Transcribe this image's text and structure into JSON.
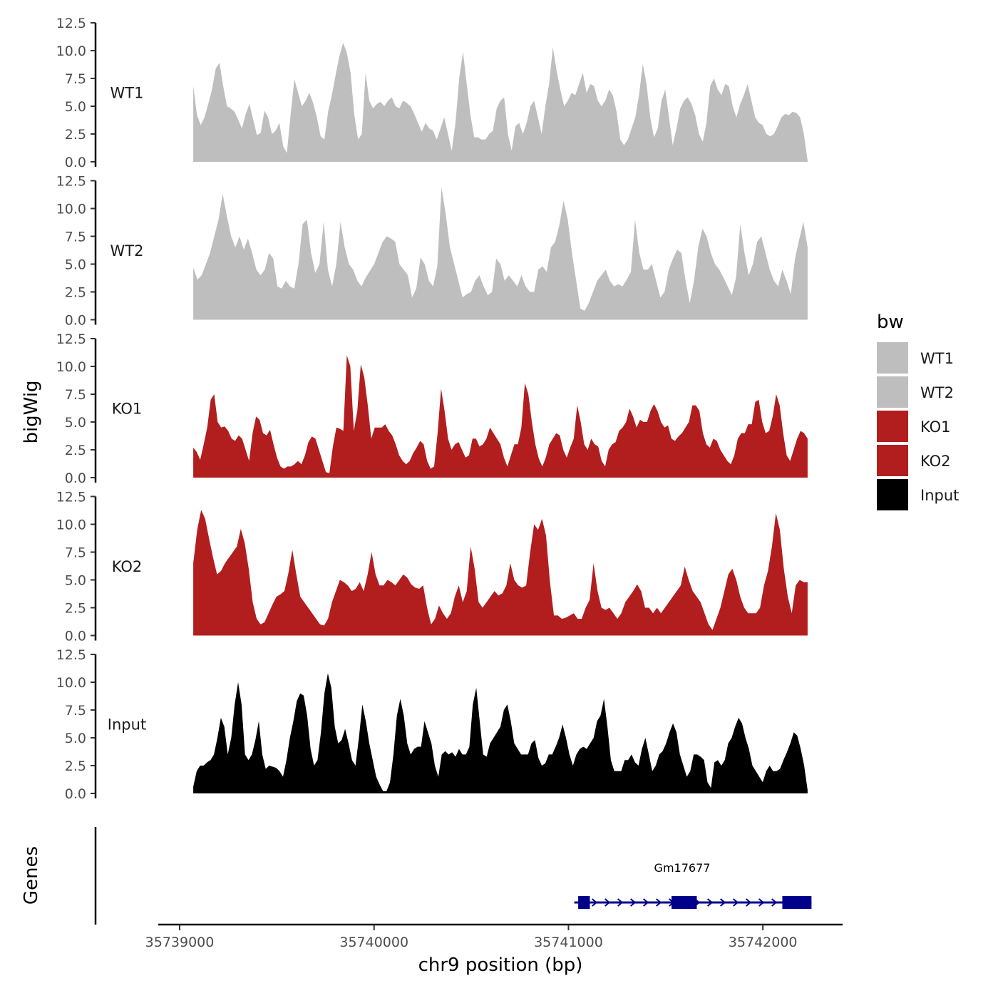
{
  "chart_data": {
    "type": "area",
    "ylabel": "bigWig",
    "xlabel": "chr9 position (bp)",
    "ylim": [
      0,
      12.5
    ],
    "yticks": [
      "0.0",
      "2.5",
      "5.0",
      "7.5",
      "10.0",
      "12.5"
    ],
    "xlim": [
      35738890,
      35742410
    ],
    "xticks": [
      35739000,
      35740000,
      35741000,
      35742000
    ],
    "xtick_labels": [
      "35739000",
      "35740000",
      "35741000",
      "35742000"
    ],
    "data_range": [
      35739070,
      35742230
    ],
    "legend": {
      "title": "bw",
      "placement": "right",
      "entries": [
        {
          "label": "WT1",
          "color": "#bebebe"
        },
        {
          "label": "WT2",
          "color": "#bebebe"
        },
        {
          "label": "KO1",
          "color": "#b21e1e"
        },
        {
          "label": "KO2",
          "color": "#b21e1e"
        },
        {
          "label": "Input",
          "color": "#000000"
        }
      ]
    },
    "series": [
      {
        "name": "WT1",
        "color": "#bebebe",
        "values": [
          6.8,
          4.2,
          3.3,
          4.0,
          5.2,
          6.5,
          8.4,
          8.9,
          6.8,
          5.0,
          4.8,
          4.5,
          3.8,
          3.0,
          4.3,
          5.2,
          3.8,
          2.4,
          2.6,
          4.6,
          4.0,
          2.5,
          2.8,
          3.5,
          1.4,
          0.8,
          4.3,
          7.4,
          6.2,
          5.0,
          5.5,
          6.2,
          5.3,
          4.0,
          2.3,
          2.0,
          4.5,
          6.0,
          7.8,
          9.5,
          10.7,
          9.8,
          8.0,
          4.2,
          2.0,
          2.5,
          8.0,
          5.5,
          4.8,
          5.2,
          5.4,
          5.0,
          5.5,
          5.8,
          5.0,
          4.8,
          5.5,
          5.3,
          5.0,
          4.3,
          3.5,
          2.7,
          3.5,
          3.0,
          2.8,
          2.0,
          3.0,
          4.0,
          2.5,
          1.0,
          3.5,
          7.5,
          9.9,
          7.0,
          4.2,
          2.2,
          2.2,
          2.0,
          2.0,
          2.5,
          2.8,
          4.8,
          5.5,
          5.8,
          2.5,
          1.0,
          3.2,
          3.5,
          2.5,
          3.5,
          5.0,
          5.5,
          4.0,
          2.5,
          5.0,
          7.0,
          10.3,
          8.2,
          6.5,
          5.0,
          5.5,
          6.2,
          6.0,
          7.0,
          8.0,
          6.2,
          7.0,
          6.8,
          5.5,
          5.0,
          5.5,
          6.5,
          6.0,
          4.5,
          2.0,
          1.5,
          2.0,
          3.0,
          4.0,
          6.0,
          8.8,
          7.0,
          4.0,
          2.2,
          3.0,
          5.5,
          6.5,
          4.0,
          1.5,
          3.0,
          4.8,
          5.5,
          5.8,
          5.2,
          4.2,
          2.5,
          1.8,
          3.5,
          6.8,
          7.5,
          6.5,
          6.0,
          7.0,
          6.8,
          5.0,
          4.0,
          5.2,
          6.0,
          7.0,
          5.5,
          4.0,
          3.5,
          3.3,
          2.5,
          2.3,
          2.5,
          3.2,
          4.0,
          4.3,
          4.2,
          4.5,
          4.4,
          4.0,
          2.5,
          0.1
        ]
      },
      {
        "name": "WT2",
        "color": "#bebebe",
        "values": [
          4.7,
          3.6,
          4.0,
          5.0,
          6.0,
          7.5,
          9.0,
          11.3,
          9.3,
          7.5,
          6.5,
          7.5,
          6.3,
          7.3,
          6.0,
          4.5,
          4.0,
          4.5,
          6.0,
          5.5,
          3.0,
          2.8,
          3.5,
          3.0,
          2.8,
          5.0,
          8.6,
          9.0,
          6.0,
          4.2,
          5.0,
          8.8,
          4.5,
          3.0,
          5.0,
          8.8,
          6.5,
          5.0,
          4.5,
          3.5,
          3.0,
          3.8,
          4.4,
          5.0,
          6.0,
          7.0,
          7.5,
          7.3,
          7.0,
          5.0,
          4.5,
          4.0,
          2.0,
          2.8,
          5.6,
          5.0,
          3.5,
          3.0,
          4.8,
          11.9,
          9.5,
          6.5,
          5.0,
          3.5,
          2.0,
          2.3,
          2.5,
          3.5,
          4.0,
          3.0,
          2.2,
          2.5,
          5.5,
          5.0,
          3.5,
          4.0,
          3.5,
          3.0,
          4.0,
          3.0,
          2.5,
          2.5,
          4.5,
          4.8,
          4.3,
          6.5,
          7.0,
          8.5,
          10.7,
          9.0,
          6.0,
          3.5,
          1.0,
          0.8,
          1.5,
          2.5,
          3.5,
          4.0,
          4.5,
          3.5,
          3.0,
          3.2,
          3.0,
          3.6,
          4.3,
          9.0,
          6.0,
          4.5,
          4.5,
          5.0,
          3.5,
          2.0,
          2.5,
          4.5,
          5.5,
          6.3,
          6.0,
          3.5,
          1.5,
          3.5,
          6.5,
          8.2,
          7.5,
          6.0,
          5.0,
          4.5,
          3.8,
          3.0,
          2.2,
          3.8,
          8.6,
          6.0,
          4.0,
          5.0,
          7.0,
          7.5,
          6.0,
          4.5,
          3.5,
          3.0,
          4.5,
          3.5,
          2.3,
          5.5,
          7.2,
          8.8,
          6.5
        ]
      },
      {
        "name": "KO1",
        "color": "#b21e1e",
        "values": [
          2.7,
          2.3,
          1.6,
          3.0,
          4.5,
          7.0,
          7.5,
          5.0,
          4.5,
          4.6,
          4.2,
          3.5,
          3.3,
          3.8,
          3.5,
          2.5,
          1.5,
          4.0,
          5.5,
          5.2,
          4.0,
          3.8,
          4.3,
          3.0,
          1.8,
          1.0,
          0.8,
          1.0,
          1.0,
          1.2,
          1.5,
          1.2,
          2.0,
          3.2,
          3.7,
          3.5,
          2.5,
          1.5,
          0.5,
          0.4,
          2.8,
          4.5,
          4.4,
          4.2,
          11.0,
          10.0,
          4.2,
          6.0,
          10.2,
          9.0,
          6.5,
          3.5,
          4.5,
          4.5,
          4.5,
          4.8,
          4.2,
          3.8,
          3.0,
          2.0,
          1.5,
          1.2,
          1.5,
          2.2,
          2.7,
          3.3,
          3.0,
          1.5,
          0.8,
          1.0,
          4.0,
          8.0,
          6.0,
          3.5,
          2.5,
          3.0,
          3.2,
          2.5,
          1.8,
          2.0,
          3.5,
          3.5,
          2.8,
          3.0,
          3.5,
          4.5,
          4.0,
          3.5,
          3.0,
          1.8,
          1.0,
          2.0,
          3.0,
          3.0,
          4.5,
          8.5,
          7.5,
          5.0,
          3.0,
          1.7,
          1.0,
          1.8,
          3.0,
          3.5,
          4.0,
          3.8,
          2.5,
          1.8,
          2.7,
          3.5,
          6.5,
          5.0,
          3.0,
          2.5,
          3.5,
          3.0,
          2.8,
          1.5,
          1.0,
          2.5,
          3.0,
          3.2,
          4.2,
          4.5,
          5.0,
          6.2,
          5.5,
          4.5,
          5.2,
          5.0,
          5.0,
          6.0,
          6.6,
          6.0,
          5.0,
          4.5,
          4.7,
          3.5,
          3.3,
          3.7,
          4.0,
          4.5,
          5.0,
          6.5,
          6.5,
          6.0,
          4.0,
          3.0,
          2.7,
          3.5,
          3.3,
          2.5,
          2.0,
          1.5,
          1.2,
          2.0,
          3.5,
          4.0,
          4.0,
          4.8,
          4.8,
          6.8,
          7.0,
          5.0,
          4.0,
          4.2,
          5.5,
          7.5,
          6.5,
          4.0,
          2.0,
          1.5,
          2.5,
          3.5,
          4.2,
          4.0,
          3.5
        ]
      },
      {
        "name": "KO2",
        "color": "#b21e1e",
        "values": [
          6.5,
          9.5,
          11.3,
          10.5,
          8.7,
          7.0,
          5.5,
          5.8,
          6.5,
          7.0,
          7.5,
          8.0,
          9.6,
          8.3,
          6.0,
          3.0,
          1.5,
          1.0,
          1.2,
          2.0,
          2.8,
          3.5,
          3.7,
          4.0,
          5.6,
          7.7,
          5.5,
          3.5,
          3.0,
          2.5,
          2.0,
          1.5,
          1.0,
          0.9,
          1.5,
          3.0,
          4.0,
          5.0,
          4.8,
          4.5,
          4.0,
          4.2,
          4.8,
          4.0,
          5.5,
          7.5,
          5.5,
          4.5,
          4.5,
          5.0,
          4.8,
          4.5,
          5.0,
          5.5,
          5.2,
          4.6,
          4.3,
          4.2,
          4.5,
          2.5,
          1.0,
          1.5,
          2.7,
          2.0,
          1.5,
          2.0,
          3.5,
          4.5,
          3.0,
          4.0,
          8.0,
          6.0,
          3.0,
          2.5,
          3.0,
          3.5,
          4.0,
          3.6,
          3.8,
          4.5,
          6.5,
          5.0,
          4.5,
          4.3,
          4.5,
          7.5,
          10.0,
          9.5,
          10.5,
          9.0,
          4.8,
          1.8,
          1.8,
          1.5,
          1.6,
          1.8,
          2.0,
          1.5,
          1.5,
          2.5,
          3.2,
          6.5,
          4.0,
          2.5,
          2.3,
          2.5,
          2.0,
          1.5,
          2.0,
          3.0,
          3.5,
          4.0,
          4.6,
          4.0,
          2.5,
          2.5,
          2.0,
          2.5,
          2.0,
          2.5,
          3.0,
          3.5,
          4.0,
          4.5,
          6.2,
          5.0,
          4.0,
          3.5,
          3.0,
          2.0,
          1.0,
          0.5,
          1.5,
          2.5,
          4.0,
          5.5,
          6.0,
          5.0,
          3.5,
          2.5,
          2.0,
          2.0,
          2.0,
          2.5,
          4.5,
          5.8,
          8.0,
          11.0,
          9.5,
          6.0,
          3.5,
          2.0,
          4.5,
          5.0,
          4.8,
          4.8
        ]
      },
      {
        "name": "Input",
        "color": "#000000",
        "values": [
          0.6,
          2.0,
          2.5,
          2.5,
          2.8,
          3.0,
          3.5,
          5.0,
          6.8,
          6.0,
          3.5,
          5.0,
          8.0,
          10.0,
          8.0,
          3.5,
          3.0,
          3.5,
          4.8,
          6.5,
          3.5,
          2.2,
          2.5,
          2.4,
          2.3,
          2.0,
          1.5,
          3.0,
          5.0,
          6.5,
          8.3,
          9.0,
          8.8,
          7.0,
          4.0,
          2.5,
          3.0,
          5.5,
          9.0,
          10.8,
          9.5,
          6.0,
          4.5,
          4.8,
          5.8,
          4.5,
          3.0,
          2.5,
          5.0,
          8.0,
          6.5,
          4.5,
          3.0,
          1.5,
          0.8,
          0.2,
          0.2,
          1.0,
          3.5,
          7.0,
          8.5,
          7.0,
          4.5,
          3.5,
          4.0,
          4.2,
          4.2,
          6.5,
          5.5,
          4.5,
          2.5,
          1.5,
          3.5,
          3.8,
          3.5,
          3.7,
          3.3,
          4.0,
          3.5,
          3.5,
          4.2,
          8.0,
          9.5,
          6.5,
          3.5,
          3.3,
          4.5,
          5.0,
          5.5,
          6.0,
          7.5,
          8.0,
          6.5,
          4.5,
          4.0,
          3.5,
          3.5,
          3.5,
          4.5,
          4.8,
          3.2,
          2.5,
          2.7,
          3.5,
          3.5,
          4.2,
          5.0,
          6.2,
          5.0,
          3.5,
          2.5,
          3.5,
          4.0,
          4.2,
          4.0,
          4.5,
          5.0,
          6.5,
          7.0,
          8.5,
          6.0,
          3.0,
          2.0,
          2.0,
          2.0,
          3.0,
          3.0,
          3.5,
          2.8,
          2.5,
          4.0,
          5.0,
          3.5,
          2.0,
          2.5,
          3.5,
          3.8,
          4.5,
          5.5,
          6.3,
          5.5,
          3.5,
          2.5,
          1.5,
          2.0,
          3.5,
          3.5,
          3.3,
          3.0,
          1.0,
          0.5,
          2.8,
          3.0,
          2.5,
          3.0,
          4.5,
          5.0,
          6.0,
          6.8,
          6.3,
          5.0,
          4.0,
          2.5,
          2.0,
          1.5,
          1.0,
          2.0,
          2.5,
          2.0,
          2.0,
          2.2,
          3.0,
          3.7,
          4.5,
          5.5,
          5.2,
          4.0,
          2.5,
          0.3
        ]
      }
    ],
    "genes_track": {
      "label": "Genes",
      "gene": {
        "name": "Gm17677",
        "color": "#00008b",
        "start": 35741030,
        "end": 35742250,
        "strand": "+",
        "exons": [
          [
            35741050,
            35741110
          ],
          [
            35741530,
            35741660
          ],
          [
            35742100,
            35742250
          ]
        ]
      }
    }
  }
}
